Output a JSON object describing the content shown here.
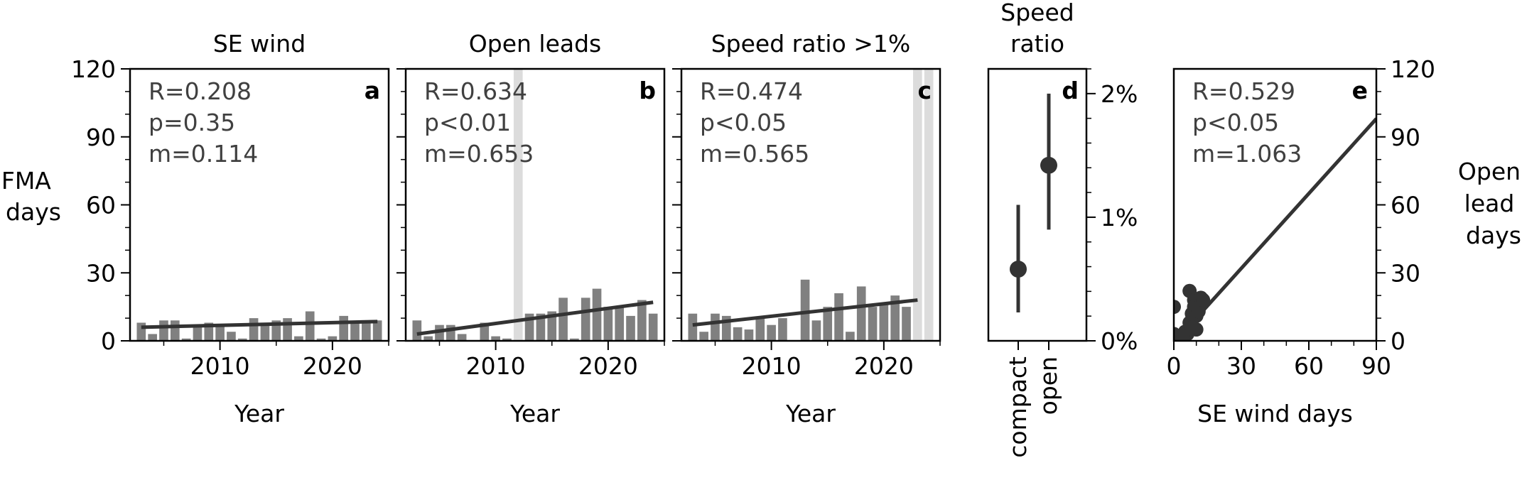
{
  "figure": {
    "shared_ylabel": [
      "JFMA",
      "days"
    ],
    "right_ylabel": [
      "Open",
      "lead",
      "days"
    ],
    "colors": {
      "bar": "#808080",
      "line": "#333333",
      "shade": "#dcdcdc",
      "stat_text": "#404040",
      "axis": "#000000"
    }
  },
  "chart_data": [
    {
      "type": "bar",
      "panel": "a",
      "title": "SE wind",
      "xlabel": "Year",
      "ylabel": "JFMA days",
      "xlim": [
        2002,
        2025
      ],
      "ylim": [
        0,
        120
      ],
      "xticks": [
        2010,
        2020
      ],
      "yticks": [
        0,
        30,
        60,
        90,
        120
      ],
      "x": [
        2003,
        2004,
        2005,
        2006,
        2007,
        2008,
        2009,
        2010,
        2011,
        2012,
        2013,
        2014,
        2015,
        2016,
        2017,
        2018,
        2019,
        2020,
        2021,
        2022,
        2023,
        2024
      ],
      "values": [
        8,
        3,
        9,
        9,
        1,
        6,
        8,
        7,
        4,
        1,
        10,
        8,
        9,
        10,
        2,
        13,
        1,
        2,
        11,
        8,
        9,
        9
      ],
      "shaded_years": [],
      "trend": {
        "x": [
          2003,
          2024
        ],
        "y": [
          6,
          8.5
        ]
      },
      "stats": [
        "R=0.208",
        "p=0.35",
        "m=0.114"
      ]
    },
    {
      "type": "bar",
      "panel": "b",
      "title": "Open leads",
      "xlabel": "Year",
      "ylabel": "JFMA days",
      "xlim": [
        2002,
        2025
      ],
      "ylim": [
        0,
        120
      ],
      "xticks": [
        2010,
        2020
      ],
      "yticks": [
        0,
        30,
        60,
        90,
        120
      ],
      "x": [
        2003,
        2004,
        2005,
        2006,
        2007,
        2008,
        2009,
        2010,
        2011,
        2012,
        2013,
        2014,
        2015,
        2016,
        2017,
        2018,
        2019,
        2020,
        2021,
        2022,
        2023,
        2024
      ],
      "values": [
        9,
        2,
        7,
        7,
        3,
        0,
        8,
        2,
        1,
        0,
        12,
        12,
        13,
        19,
        1,
        19,
        23,
        15,
        15,
        11,
        18,
        12
      ],
      "shaded_years": [
        2012
      ],
      "trend": {
        "x": [
          2003,
          2024
        ],
        "y": [
          3,
          17
        ]
      },
      "stats": [
        "R=0.634",
        "p<0.01",
        "m=0.653"
      ]
    },
    {
      "type": "bar",
      "panel": "c",
      "title": "Speed ratio >1%",
      "xlabel": "Year",
      "ylabel": "JFMA days",
      "xlim": [
        2002,
        2025
      ],
      "ylim": [
        0,
        120
      ],
      "xticks": [
        2010,
        2020
      ],
      "yticks": [
        0,
        30,
        60,
        90,
        120
      ],
      "x": [
        2003,
        2004,
        2005,
        2006,
        2007,
        2008,
        2009,
        2010,
        2011,
        2012,
        2013,
        2014,
        2015,
        2016,
        2017,
        2018,
        2019,
        2020,
        2021,
        2022,
        2023,
        2024
      ],
      "values": [
        12,
        4,
        12,
        11,
        6,
        5,
        10,
        7,
        10,
        0,
        27,
        9,
        15,
        21,
        4,
        24,
        15,
        16,
        20,
        15,
        0,
        0
      ],
      "shaded_years": [
        2023,
        2024
      ],
      "trend": {
        "x": [
          2003,
          2023
        ],
        "y": [
          7,
          18
        ]
      },
      "stats": [
        "R=0.474",
        "p<0.05",
        "m=0.565"
      ]
    },
    {
      "type": "scatter",
      "panel": "d",
      "title": "Speed ratio",
      "categories": [
        "compact",
        "open"
      ],
      "values": [
        0.58,
        1.42
      ],
      "error_low": [
        0.23,
        0.9
      ],
      "error_high": [
        1.1,
        2.0
      ],
      "ylim": [
        0,
        2.2
      ],
      "yticks": [
        0,
        1,
        2
      ],
      "ytick_labels": [
        "0%",
        "1%",
        "2%"
      ],
      "yaxis_side": "right"
    },
    {
      "type": "scatter",
      "panel": "e",
      "xlabel": "SE wind days",
      "ylabel": "Open lead days",
      "xlim": [
        0,
        90
      ],
      "ylim": [
        0,
        120
      ],
      "xticks": [
        0,
        30,
        60,
        90
      ],
      "yticks": [
        0,
        30,
        60,
        90,
        120
      ],
      "yaxis_side": "right",
      "points": [
        [
          0,
          15
        ],
        [
          0,
          3
        ],
        [
          1,
          2
        ],
        [
          2,
          1
        ],
        [
          3,
          0
        ],
        [
          4,
          1
        ],
        [
          5,
          4
        ],
        [
          6,
          3
        ],
        [
          7,
          8
        ],
        [
          7,
          22
        ],
        [
          8,
          12
        ],
        [
          9,
          18
        ],
        [
          9,
          15
        ],
        [
          10,
          11
        ],
        [
          10,
          5
        ],
        [
          11,
          13
        ],
        [
          12,
          19
        ],
        [
          13,
          18
        ],
        [
          4,
          2
        ],
        [
          8,
          6
        ]
      ],
      "fit": {
        "x": [
          10,
          90
        ],
        "y": [
          10,
          98
        ]
      },
      "stats": [
        "R=0.529",
        "p<0.05",
        "m=1.063"
      ]
    }
  ]
}
